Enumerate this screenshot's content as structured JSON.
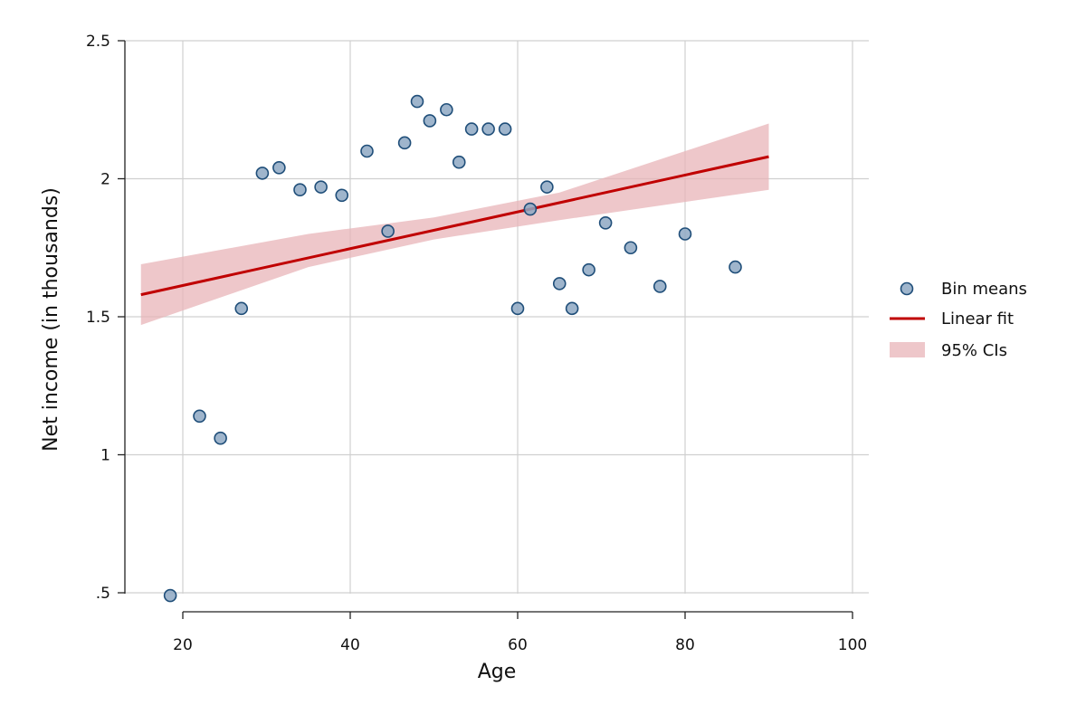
{
  "chart_data": {
    "type": "scatter",
    "xlabel": "Age",
    "ylabel": "Net income (in thousands)",
    "xlim": [
      15,
      100
    ],
    "ylim": [
      0.45,
      2.5
    ],
    "x_ticks": [
      20,
      40,
      60,
      80,
      100
    ],
    "x_tick_labels": [
      "20",
      "40",
      "60",
      "80",
      "100"
    ],
    "y_ticks": [
      0.5,
      1,
      1.5,
      2,
      2.5
    ],
    "y_tick_labels": [
      ".5",
      "1",
      "1.5",
      "2",
      "2.5"
    ],
    "grid": true,
    "legend_position": "right",
    "series": [
      {
        "name": "Bin means",
        "kind": "scatter",
        "color": "#8ea8c3",
        "edge_color": "#1f4e79",
        "points": [
          [
            18.5,
            0.49
          ],
          [
            22.0,
            1.14
          ],
          [
            24.5,
            1.06
          ],
          [
            27.0,
            1.53
          ],
          [
            29.5,
            2.02
          ],
          [
            31.5,
            2.04
          ],
          [
            34.0,
            1.96
          ],
          [
            36.5,
            1.97
          ],
          [
            39.0,
            1.94
          ],
          [
            42.0,
            2.1
          ],
          [
            44.5,
            1.81
          ],
          [
            46.5,
            2.13
          ],
          [
            48.0,
            2.28
          ],
          [
            49.5,
            2.21
          ],
          [
            51.5,
            2.25
          ],
          [
            53.0,
            2.06
          ],
          [
            54.5,
            2.18
          ],
          [
            56.5,
            2.18
          ],
          [
            58.5,
            2.18
          ],
          [
            60.0,
            1.53
          ],
          [
            61.5,
            1.89
          ],
          [
            63.5,
            1.97
          ],
          [
            65.0,
            1.62
          ],
          [
            66.5,
            1.53
          ],
          [
            68.5,
            1.67
          ],
          [
            70.5,
            1.84
          ],
          [
            73.5,
            1.75
          ],
          [
            77.0,
            1.61
          ],
          [
            80.0,
            1.8
          ],
          [
            86.0,
            1.68
          ]
        ]
      },
      {
        "name": "Linear fit",
        "kind": "line",
        "color": "#c00000",
        "points": [
          [
            15,
            1.58
          ],
          [
            90,
            2.08
          ]
        ]
      },
      {
        "name": "95% CIs",
        "kind": "band",
        "color": "#e8b4b8",
        "x": [
          15,
          35,
          50,
          65,
          90
        ],
        "lower": [
          1.47,
          1.68,
          1.78,
          1.85,
          1.96
        ],
        "upper": [
          1.69,
          1.8,
          1.86,
          1.95,
          2.2
        ]
      }
    ]
  }
}
